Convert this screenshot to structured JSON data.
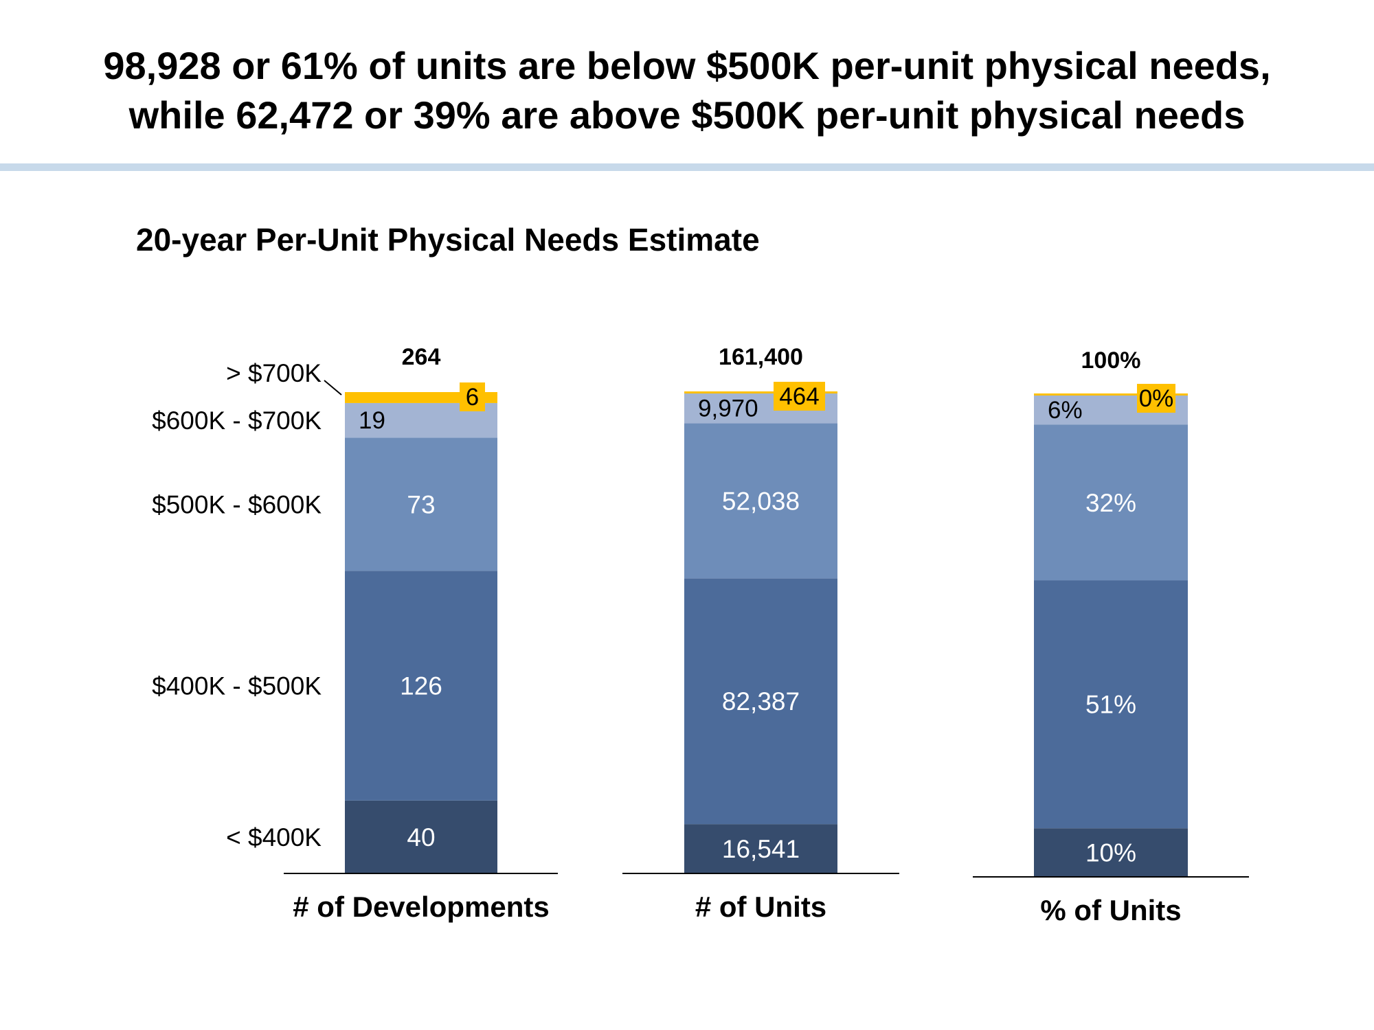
{
  "headline": {
    "line1": "98,928 or 61% of units are below $500K per-unit physical needs,",
    "line2": "while 62,472 or 39% are above $500K per-unit physical needs"
  },
  "subtitle": "20-year Per-Unit Physical Needs Estimate",
  "colors": {
    "lt400": "#364c6d",
    "400to500": "#4c6b9a",
    "500to600": "#6e8db9",
    "600to700": "#a3b4d3",
    "gt700": "#ffc000",
    "rule": "#c7d9ea"
  },
  "chart_data": {
    "type": "bar",
    "stacked": true,
    "segment_labels": [
      "< $400K",
      "$400K - $500K",
      "$500K - $600K",
      "$600K - $700K",
      "> $700K"
    ],
    "bars": [
      {
        "category": "# of Developments",
        "total_label": "264",
        "values": [
          40,
          126,
          73,
          19,
          6
        ],
        "labels": [
          "40",
          "126",
          "73",
          "19",
          "6"
        ]
      },
      {
        "category": "# of Units",
        "total_label": "161,400",
        "values": [
          16541,
          82387,
          52038,
          9970,
          464
        ],
        "labels": [
          "16,541",
          "82,387",
          "52,038",
          "9,970",
          "464"
        ]
      },
      {
        "category": "% of Units",
        "total_label": "100%",
        "values": [
          10,
          51,
          32,
          6,
          0
        ],
        "labels": [
          "10%",
          "51%",
          "32%",
          "6%",
          "0%"
        ]
      }
    ]
  }
}
